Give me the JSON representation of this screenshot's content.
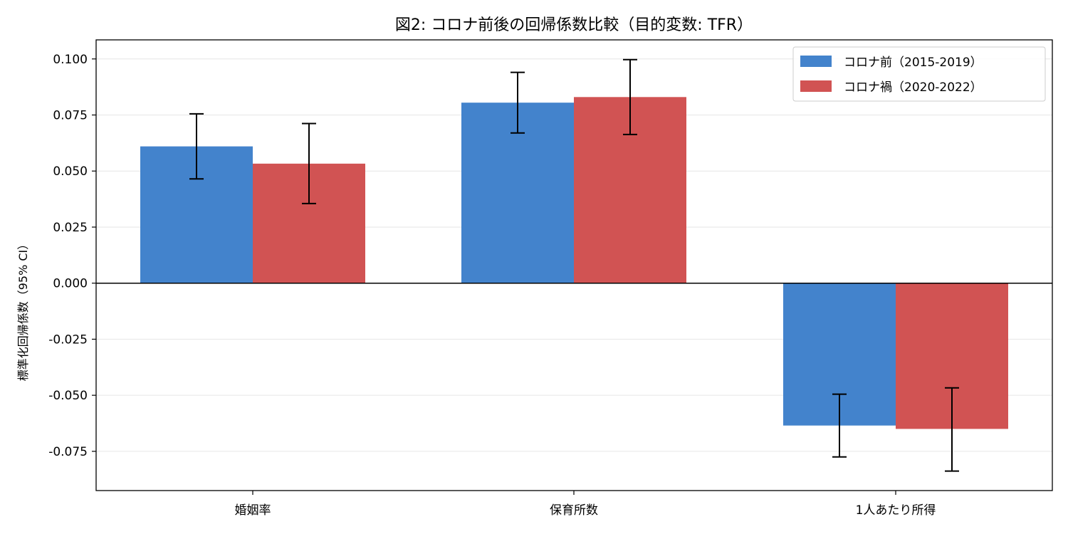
{
  "chart_data": {
    "type": "bar",
    "title": "図2: コロナ前後の回帰係数比較（目的変数: TFR）",
    "xlabel": "",
    "ylabel": "標準化回帰係数（95% CI）",
    "categories": [
      "婚姻率",
      "保育所数",
      "1人あたり所得"
    ],
    "series": [
      {
        "name": "コロナ前（2015-2019）",
        "color": "#4383cc",
        "values": [
          0.061,
          0.0805,
          -0.0635
        ],
        "ci_low": [
          0.0465,
          0.067,
          -0.0775
        ],
        "ci_high": [
          0.0755,
          0.094,
          -0.0495
        ]
      },
      {
        "name": "コロナ禍（2020-2022）",
        "color": "#d15353",
        "values": [
          0.0533,
          0.083,
          -0.065
        ],
        "ci_low": [
          0.0355,
          0.0663,
          -0.0838
        ],
        "ci_high": [
          0.0712,
          0.0997,
          -0.0467
        ]
      }
    ],
    "ylim": [
      -0.0925,
      0.1085
    ],
    "yticks": [
      0.1,
      0.075,
      0.05,
      0.025,
      0.0,
      -0.025,
      -0.05,
      -0.075
    ],
    "ytick_labels": [
      "0.100",
      "0.075",
      "0.050",
      "0.025",
      "0.000",
      "-0.025",
      "-0.050",
      "-0.075"
    ],
    "grid": "horizontal",
    "legend_position": "top-right",
    "zero_line": true
  }
}
